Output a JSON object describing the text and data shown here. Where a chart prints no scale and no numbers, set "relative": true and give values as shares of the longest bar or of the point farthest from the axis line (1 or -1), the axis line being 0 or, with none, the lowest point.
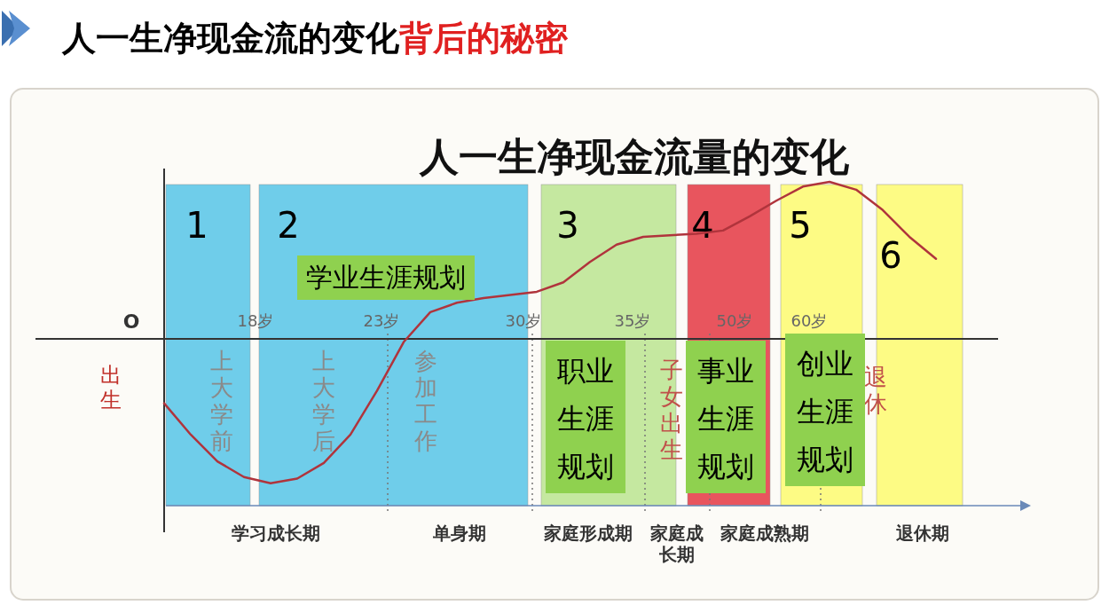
{
  "chart_data": {
    "type": "line",
    "title": "人一生净现金流的变化背后的秘密",
    "subtitle": "人一生净现金流量的变化",
    "relative": true,
    "categories": [
      null,
      null,
      null,
      null,
      null,
      null,
      null,
      null,
      null,
      null,
      null,
      null,
      null,
      null,
      null,
      null,
      null,
      null,
      null,
      null,
      null,
      null,
      null,
      null,
      null,
      null,
      null,
      null,
      null,
      null
    ],
    "series": [
      {
        "color": "#b0343c",
        "values": [
          -0.41,
          -0.61,
          -0.78,
          -0.88,
          -0.92,
          -0.89,
          -0.79,
          -0.61,
          -0.33,
          -0.02,
          0.17,
          0.23,
          0.26,
          0.28,
          0.3,
          0.36,
          0.49,
          0.6,
          0.65,
          0.66,
          0.67,
          0.69,
          0.78,
          0.88,
          0.97,
          1,
          0.95,
          0.82,
          0.65,
          0.51
        ]
      }
    ],
    "annotations": [
      "O",
      "出生",
      "学习成长期",
      "单身期",
      "家庭形成期",
      "家庭成长期",
      "家庭成熟期",
      "退休期",
      "1",
      "2",
      "3",
      "4",
      "5",
      "6",
      "18岁",
      "23岁",
      "30岁",
      "35岁",
      "50岁",
      "60岁",
      "上大学前",
      "上大学后",
      "参加工作",
      "子女出生",
      "退休",
      "学业生涯规划",
      "职业生涯规划",
      "事业生涯规划",
      "创业生涯规划"
    ],
    "line_style": "solid"
  }
}
